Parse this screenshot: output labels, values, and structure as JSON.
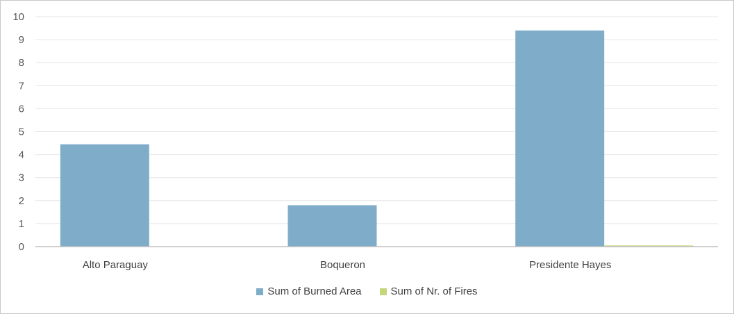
{
  "chart_data": {
    "type": "bar",
    "title": "",
    "xlabel": "",
    "ylabel": "",
    "categories": [
      "Alto Paraguay",
      "Boqueron",
      "Presidente Hayes"
    ],
    "series": [
      {
        "name": "Sum of Burned Area",
        "values": [
          4.45,
          1.8,
          9.4
        ],
        "color": "#7fadc9"
      },
      {
        "name": "Sum of Nr. of Fires",
        "values": [
          0.0,
          0.0,
          0.05
        ],
        "color": "#c4d67a"
      }
    ],
    "ylim": [
      0,
      10
    ],
    "yticks": [
      0,
      1,
      2,
      3,
      4,
      5,
      6,
      7,
      8,
      9,
      10
    ],
    "grid": true,
    "legend_position": "bottom"
  }
}
